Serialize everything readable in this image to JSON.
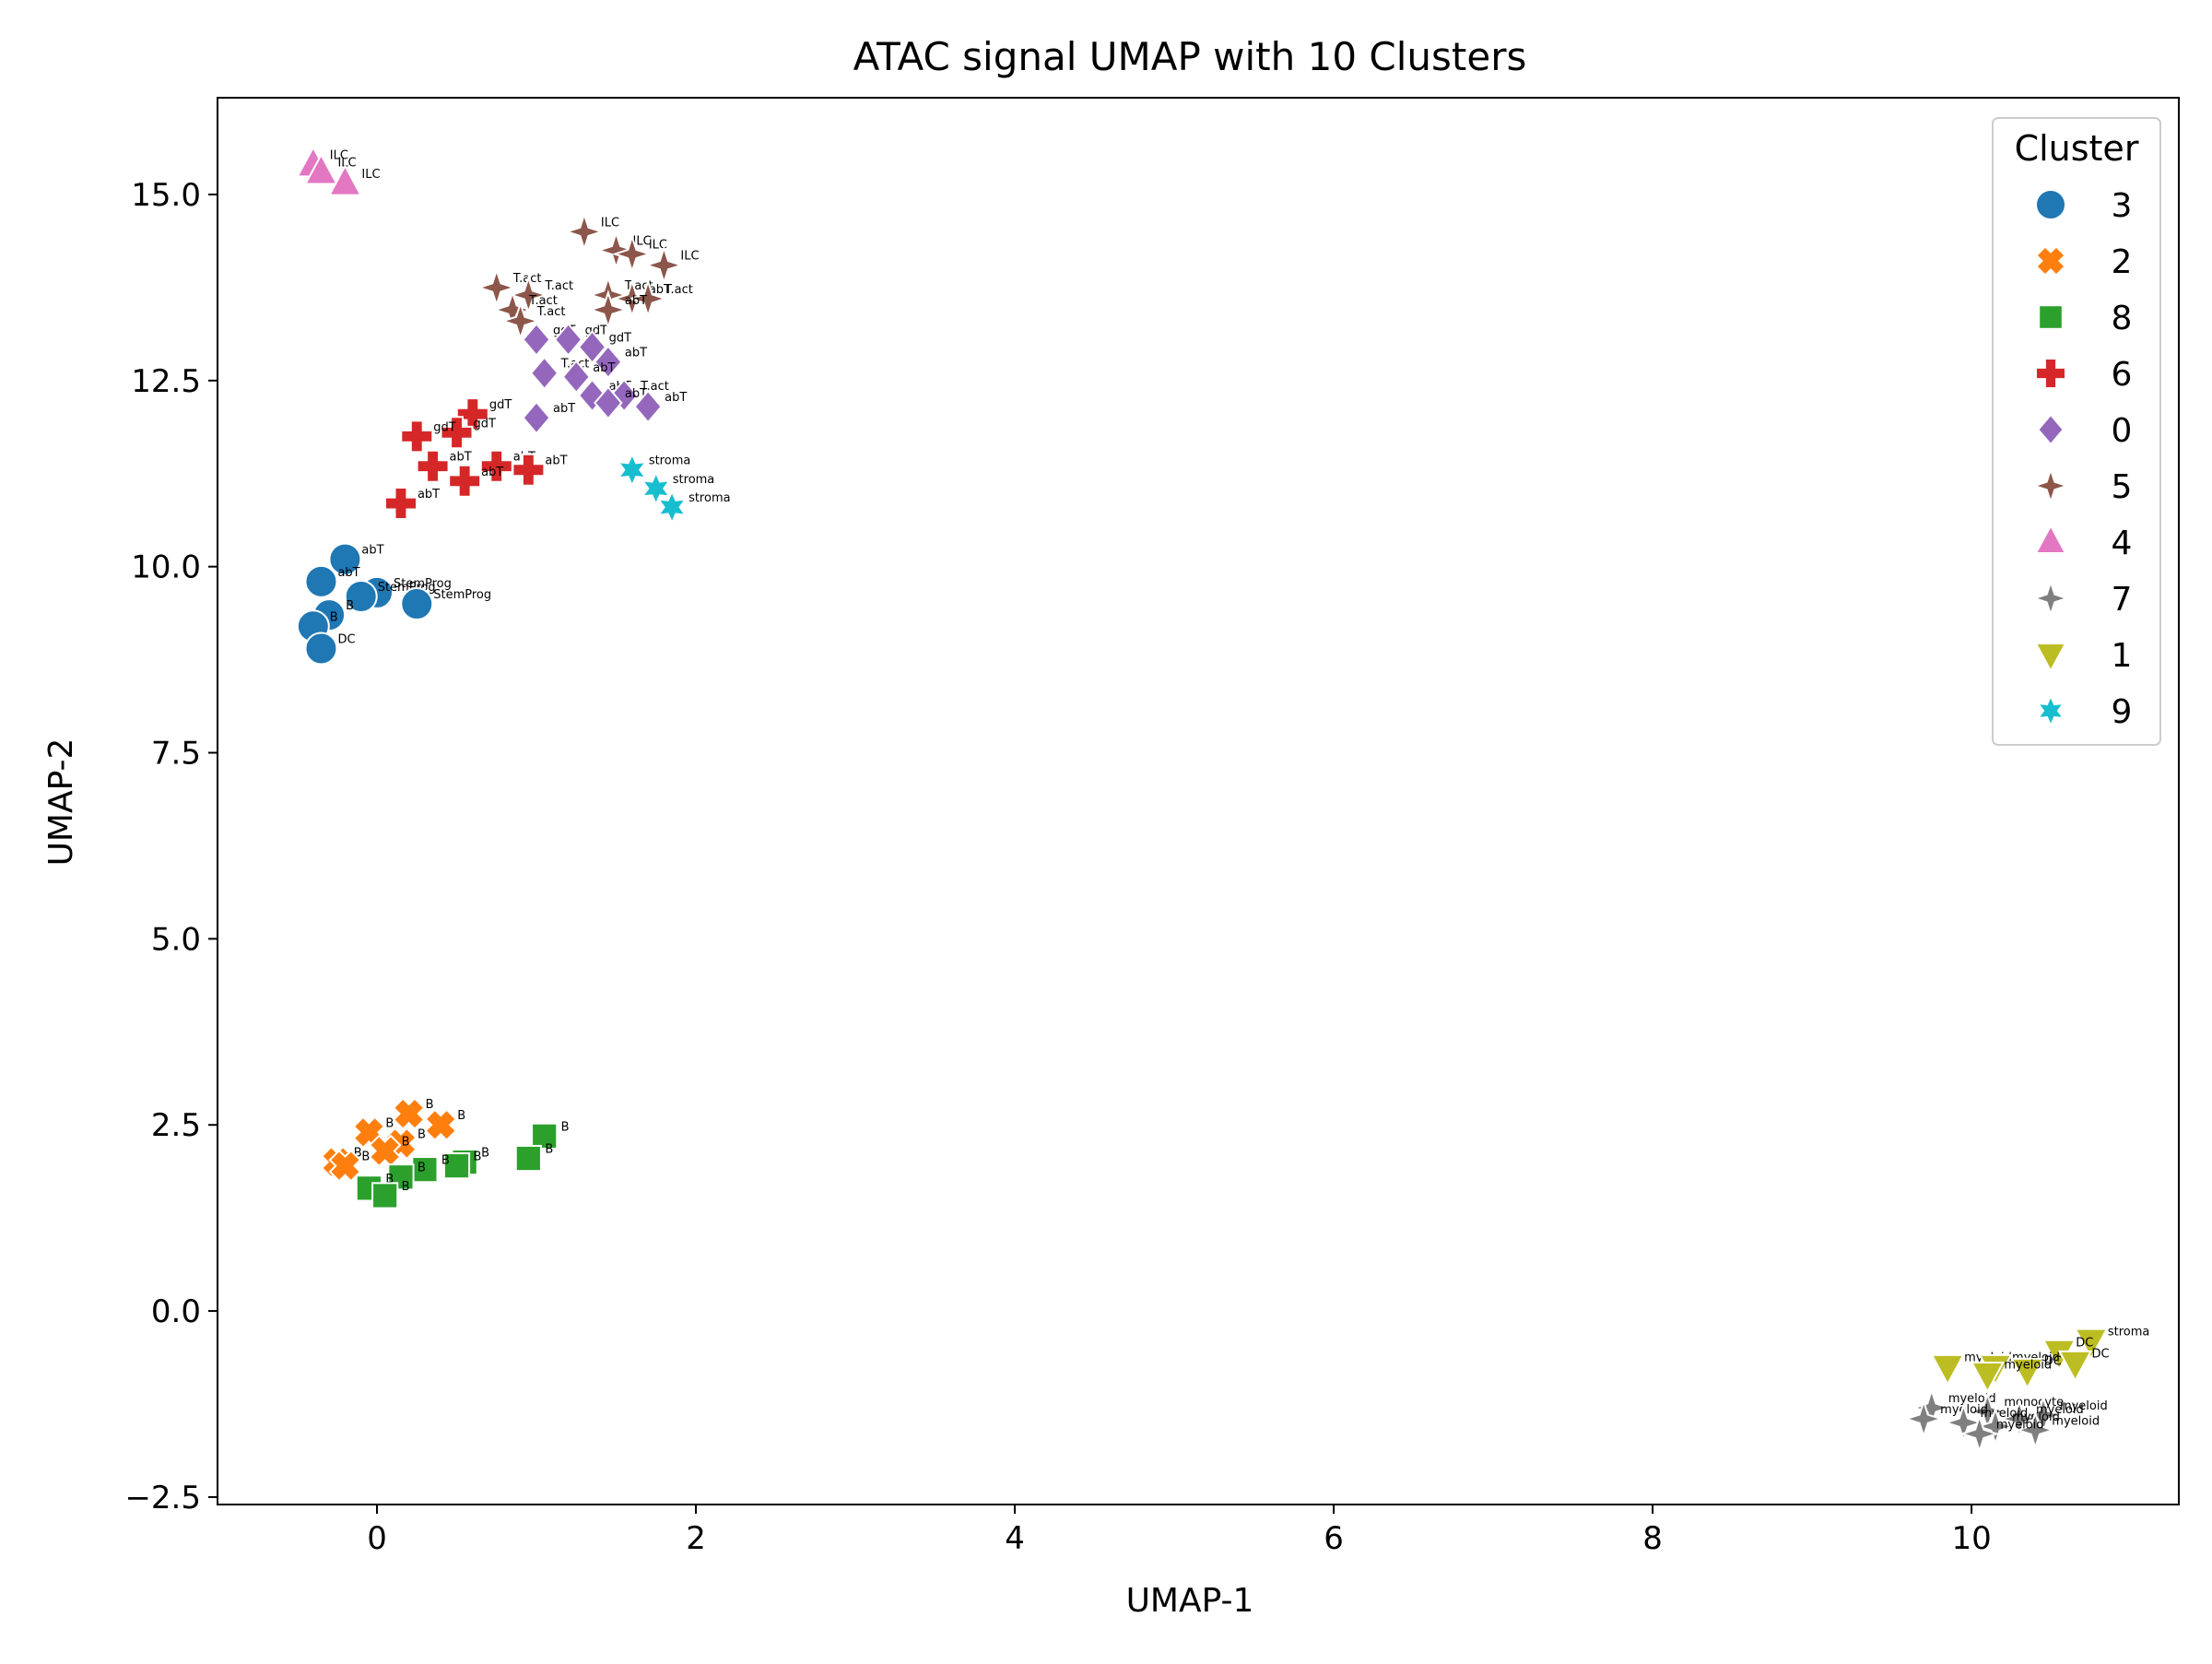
{
  "chart_data": {
    "type": "scatter",
    "title": "ATAC signal UMAP with 10 Clusters",
    "xlabel": "UMAP-1",
    "ylabel": "UMAP-2",
    "xlim": [
      -1.0,
      11.3
    ],
    "ylim": [
      -2.6,
      16.3
    ],
    "xticks": [
      0,
      2,
      4,
      6,
      8,
      10
    ],
    "xtick_labels": [
      "0",
      "2",
      "4",
      "6",
      "8",
      "10"
    ],
    "yticks": [
      -2.5,
      0.0,
      2.5,
      5.0,
      7.5,
      10.0,
      12.5,
      15.0
    ],
    "ytick_labels": [
      "−2.5",
      "0.0",
      "2.5",
      "5.0",
      "7.5",
      "10.0",
      "12.5",
      "15.0"
    ],
    "grid": false,
    "legend": {
      "title": "Cluster",
      "position": "upper-right",
      "entries": [
        "3",
        "2",
        "8",
        "6",
        "0",
        "5",
        "4",
        "7",
        "1",
        "9"
      ]
    },
    "series": [
      {
        "name": "3",
        "color": "#1f77b4",
        "marker": "circle",
        "points": [
          {
            "x": -0.2,
            "y": 10.1,
            "label": "abT"
          },
          {
            "x": -0.35,
            "y": 9.8,
            "label": "abT"
          },
          {
            "x": 0.0,
            "y": 9.65,
            "label": "StemProg"
          },
          {
            "x": -0.1,
            "y": 9.6,
            "label": "StemProg"
          },
          {
            "x": 0.25,
            "y": 9.5,
            "label": "StemProg"
          },
          {
            "x": -0.3,
            "y": 9.35,
            "label": "B"
          },
          {
            "x": -0.4,
            "y": 9.2,
            "label": "B"
          },
          {
            "x": -0.35,
            "y": 8.9,
            "label": "DC"
          }
        ]
      },
      {
        "name": "2",
        "color": "#ff7f0e",
        "marker": "x",
        "points": [
          {
            "x": 0.2,
            "y": 2.65,
            "label": "B"
          },
          {
            "x": 0.4,
            "y": 2.5,
            "label": "B"
          },
          {
            "x": -0.05,
            "y": 2.4,
            "label": "B"
          },
          {
            "x": 0.15,
            "y": 2.25,
            "label": "B"
          },
          {
            "x": 0.05,
            "y": 2.15,
            "label": "B"
          },
          {
            "x": -0.25,
            "y": 2.0,
            "label": "B"
          },
          {
            "x": -0.2,
            "y": 1.95,
            "label": "B"
          }
        ]
      },
      {
        "name": "8",
        "color": "#2ca02c",
        "marker": "square",
        "points": [
          {
            "x": 1.05,
            "y": 2.35,
            "label": "B"
          },
          {
            "x": 0.95,
            "y": 2.05,
            "label": "B"
          },
          {
            "x": 0.55,
            "y": 2.0,
            "label": "B"
          },
          {
            "x": 0.5,
            "y": 1.95,
            "label": "B"
          },
          {
            "x": 0.3,
            "y": 1.9,
            "label": "B"
          },
          {
            "x": 0.15,
            "y": 1.8,
            "label": "B"
          },
          {
            "x": -0.05,
            "y": 1.65,
            "label": "B"
          },
          {
            "x": 0.05,
            "y": 1.55,
            "label": "B"
          }
        ]
      },
      {
        "name": "6",
        "color": "#d62728",
        "marker": "plus",
        "points": [
          {
            "x": 0.6,
            "y": 12.05,
            "label": "gdT"
          },
          {
            "x": 0.5,
            "y": 11.8,
            "label": "gdT"
          },
          {
            "x": 0.25,
            "y": 11.75,
            "label": "gdT"
          },
          {
            "x": 0.35,
            "y": 11.35,
            "label": "abT"
          },
          {
            "x": 0.75,
            "y": 11.35,
            "label": "abT"
          },
          {
            "x": 0.95,
            "y": 11.3,
            "label": "abT"
          },
          {
            "x": 0.55,
            "y": 11.15,
            "label": "abT"
          },
          {
            "x": 0.15,
            "y": 10.85,
            "label": "abT"
          }
        ]
      },
      {
        "name": "0",
        "color": "#9467bd",
        "marker": "diamond",
        "points": [
          {
            "x": 1.0,
            "y": 13.05,
            "label": "gdT"
          },
          {
            "x": 1.2,
            "y": 13.05,
            "label": "gdT"
          },
          {
            "x": 1.35,
            "y": 12.95,
            "label": "gdT"
          },
          {
            "x": 1.45,
            "y": 12.75,
            "label": "abT"
          },
          {
            "x": 1.05,
            "y": 12.6,
            "label": "T.act"
          },
          {
            "x": 1.25,
            "y": 12.55,
            "label": "abT"
          },
          {
            "x": 1.35,
            "y": 12.3,
            "label": "abT"
          },
          {
            "x": 1.55,
            "y": 12.3,
            "label": "T.act"
          },
          {
            "x": 1.45,
            "y": 12.2,
            "label": "abT"
          },
          {
            "x": 1.7,
            "y": 12.15,
            "label": "abT"
          },
          {
            "x": 1.0,
            "y": 12.0,
            "label": "abT"
          }
        ]
      },
      {
        "name": "5",
        "color": "#8c564b",
        "marker": "star4",
        "points": [
          {
            "x": 1.3,
            "y": 14.5,
            "label": "ILC"
          },
          {
            "x": 1.5,
            "y": 14.25,
            "label": "ILC"
          },
          {
            "x": 1.6,
            "y": 14.2,
            "label": "ILC"
          },
          {
            "x": 1.8,
            "y": 14.05,
            "label": "ILC"
          },
          {
            "x": 0.75,
            "y": 13.75,
            "label": "T.act"
          },
          {
            "x": 0.95,
            "y": 13.65,
            "label": "T.act"
          },
          {
            "x": 1.45,
            "y": 13.65,
            "label": "T.act"
          },
          {
            "x": 1.6,
            "y": 13.6,
            "label": "abT"
          },
          {
            "x": 1.7,
            "y": 13.6,
            "label": "T.act"
          },
          {
            "x": 0.85,
            "y": 13.45,
            "label": "T.act"
          },
          {
            "x": 1.45,
            "y": 13.45,
            "label": "abT"
          },
          {
            "x": 0.9,
            "y": 13.3,
            "label": "T.act"
          }
        ]
      },
      {
        "name": "4",
        "color": "#e377c2",
        "marker": "triangle-up",
        "points": [
          {
            "x": -0.4,
            "y": 15.4,
            "label": "ILC"
          },
          {
            "x": -0.35,
            "y": 15.3,
            "label": "ILC"
          },
          {
            "x": -0.2,
            "y": 15.15,
            "label": "ILC"
          }
        ]
      },
      {
        "name": "7",
        "color": "#7f7f7f",
        "marker": "star4",
        "points": [
          {
            "x": 9.75,
            "y": -1.3,
            "label": "myeloid"
          },
          {
            "x": 10.1,
            "y": -1.35,
            "label": "monocyte"
          },
          {
            "x": 10.45,
            "y": -1.4,
            "label": "myeloid"
          },
          {
            "x": 9.7,
            "y": -1.45,
            "label": "myeloid"
          },
          {
            "x": 10.3,
            "y": -1.45,
            "label": "myeloid"
          },
          {
            "x": 9.95,
            "y": -1.5,
            "label": "myeloid"
          },
          {
            "x": 10.15,
            "y": -1.55,
            "label": "myeloid"
          },
          {
            "x": 10.4,
            "y": -1.6,
            "label": "myeloid"
          },
          {
            "x": 10.05,
            "y": -1.65,
            "label": "myeloid"
          }
        ]
      },
      {
        "name": "1",
        "color": "#bcbd22",
        "marker": "triangle-down",
        "points": [
          {
            "x": 10.75,
            "y": -0.4,
            "label": "stroma"
          },
          {
            "x": 10.55,
            "y": -0.55,
            "label": "DC"
          },
          {
            "x": 10.65,
            "y": -0.7,
            "label": "DC"
          },
          {
            "x": 9.85,
            "y": -0.75,
            "label": "myeloid"
          },
          {
            "x": 10.15,
            "y": -0.75,
            "label": "myeloid"
          },
          {
            "x": 10.35,
            "y": -0.8,
            "label": "DC"
          },
          {
            "x": 10.1,
            "y": -0.85,
            "label": "myeloid"
          }
        ]
      },
      {
        "name": "9",
        "color": "#17becf",
        "marker": "star6",
        "points": [
          {
            "x": 1.6,
            "y": 11.3,
            "label": "stroma"
          },
          {
            "x": 1.75,
            "y": 11.05,
            "label": "stroma"
          },
          {
            "x": 1.85,
            "y": 10.8,
            "label": "stroma"
          }
        ]
      }
    ]
  }
}
